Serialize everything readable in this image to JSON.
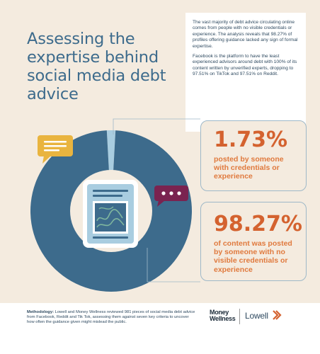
{
  "title": "Assessing the expertise behind social media debt advice",
  "intro": {
    "p1": "The vast majority of debt advice circulating online comes from people with no visible credentials or experience. The analysis reveals that 98.27% of profiles offering guidance lacked any sign of formal expertise.",
    "p2": "Facebook is the platform to have the least experienced advisors around debt with 100% of its content written by unverified experts, dropping to 97.51% on TikTok and 97.51% on Reddit."
  },
  "stats": [
    {
      "value": "1.73%",
      "label": "posted by someone with credentials or experience"
    },
    {
      "value": "98.27%",
      "label": "of content was posted by someone with no visible credentials or experience"
    }
  ],
  "methodology": {
    "label": "Methodology:",
    "text": " Lowell and Money Wellness reviewed 981 pieces of social media debt advice from Facebook, Reddit and Tik Tok, assessing them against seven key criteria to uncover how often the guidance given might mislead the public."
  },
  "logos": {
    "money": "Money",
    "wellness": "Wellness",
    "lowell": "Lowell"
  },
  "colors": {
    "background": "#f4ebdf",
    "no_credentials": "#3d6b8c",
    "with_credentials": "#a9cde0",
    "accent": "#d4622f",
    "bubble_yellow": "#e9b43f",
    "bubble_purple": "#7a2350"
  },
  "chart_data": {
    "type": "pie",
    "style": "donut",
    "categories": [
      "posted by someone with credentials or experience",
      "of content was posted by someone with no visible credentials or experience"
    ],
    "values": [
      1.73,
      98.27
    ],
    "unit": "%",
    "title": "Assessing the expertise behind social media debt advice"
  }
}
